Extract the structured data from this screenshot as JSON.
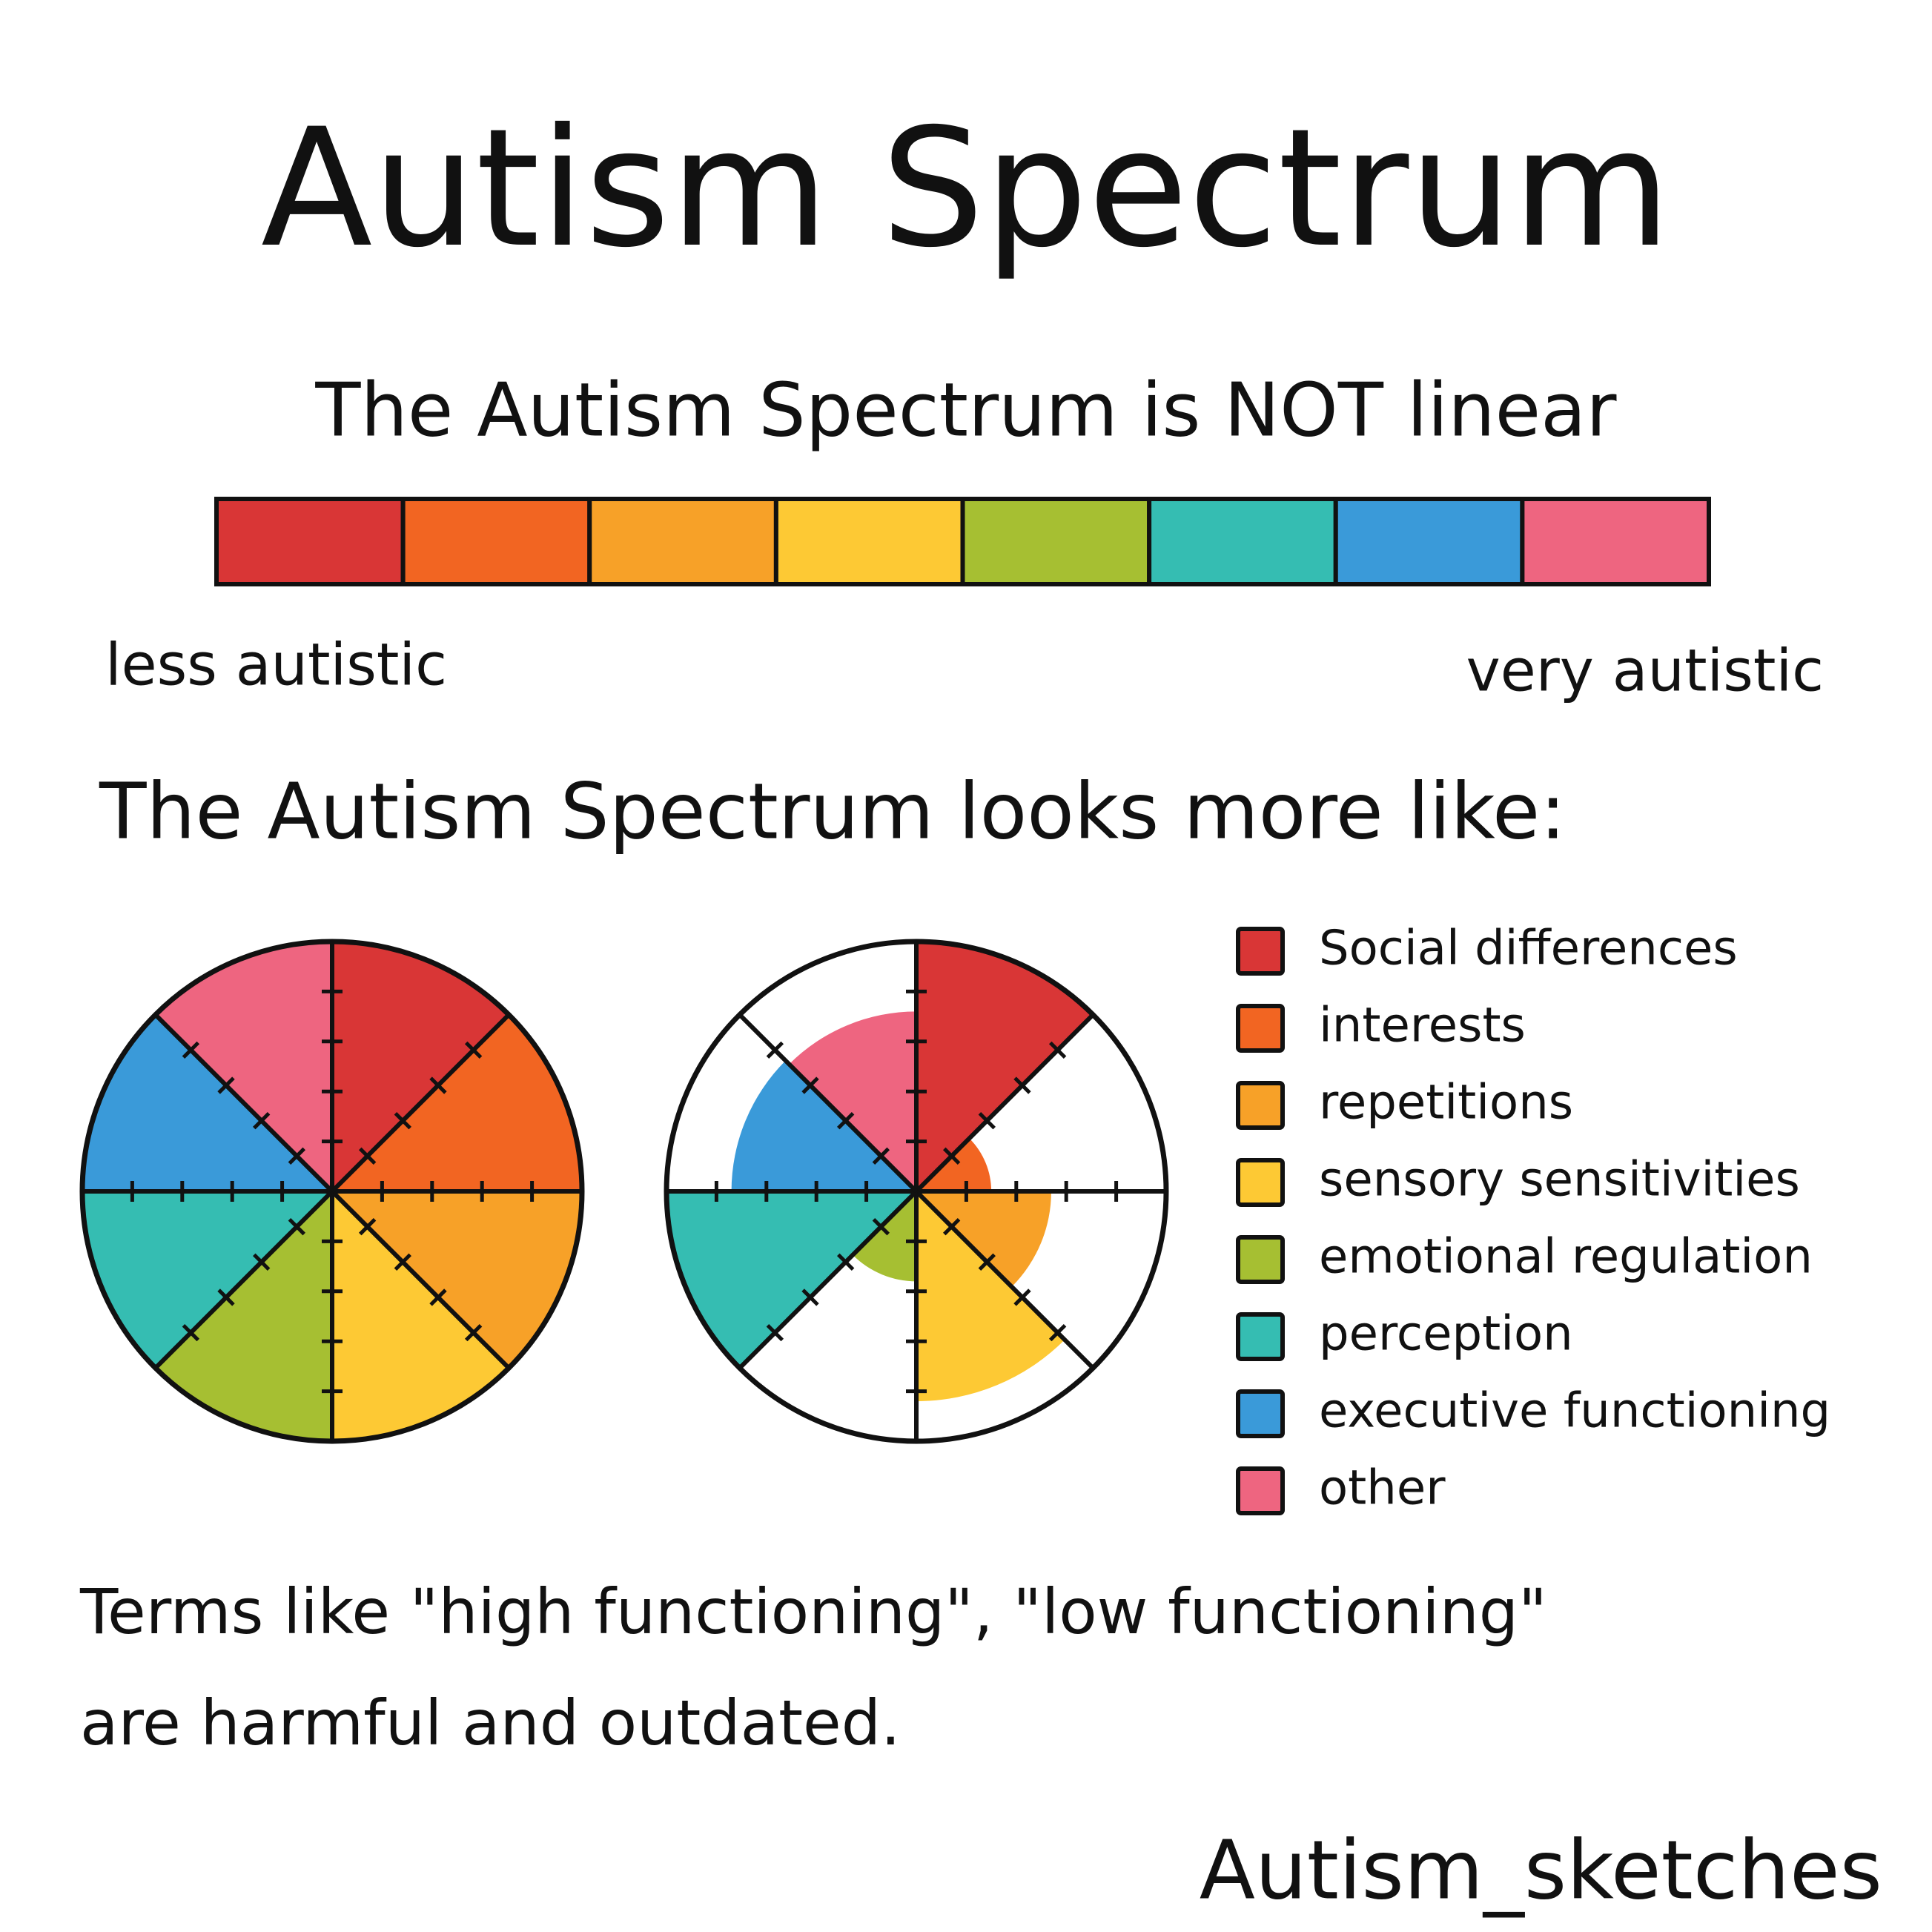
{
  "title": "Autism Spectrum",
  "subtitle": "The Autism Spectrum is NOT linear",
  "spectrum": {
    "colors": [
      "#d93636",
      "#f26522",
      "#f7a128",
      "#fdc934",
      "#a6bf32",
      "#35bdb2",
      "#3a9ad9",
      "#ee6580"
    ],
    "left_label": "less autistic",
    "right_label": "very autistic"
  },
  "intro": "The Autism Spectrum looks more like:",
  "chart_data": {
    "type": "polar",
    "categories": [
      "Social differences",
      "interests",
      "repetitions",
      "sensory sensitivities",
      "emotional regulation",
      "perception",
      "executive functioning",
      "other"
    ],
    "colors": [
      "#d93636",
      "#f26522",
      "#f7a128",
      "#fdc934",
      "#a6bf32",
      "#35bdb2",
      "#3a9ad9",
      "#ee6580"
    ],
    "series": [
      {
        "values": [
          5,
          5,
          5,
          5,
          5,
          5,
          5,
          5
        ]
      },
      {
        "values": [
          5,
          1.5,
          2.7,
          4.2,
          1.8,
          5,
          3.7,
          3.6
        ]
      }
    ],
    "rlim": [
      0,
      5
    ],
    "rticks": [
      1,
      2,
      3,
      4
    ]
  },
  "footer": {
    "lines": [
      "Terms like \"high functioning\", \"low functioning\"",
      "are harmful and outdated."
    ],
    "credit": "Autism_sketches"
  }
}
